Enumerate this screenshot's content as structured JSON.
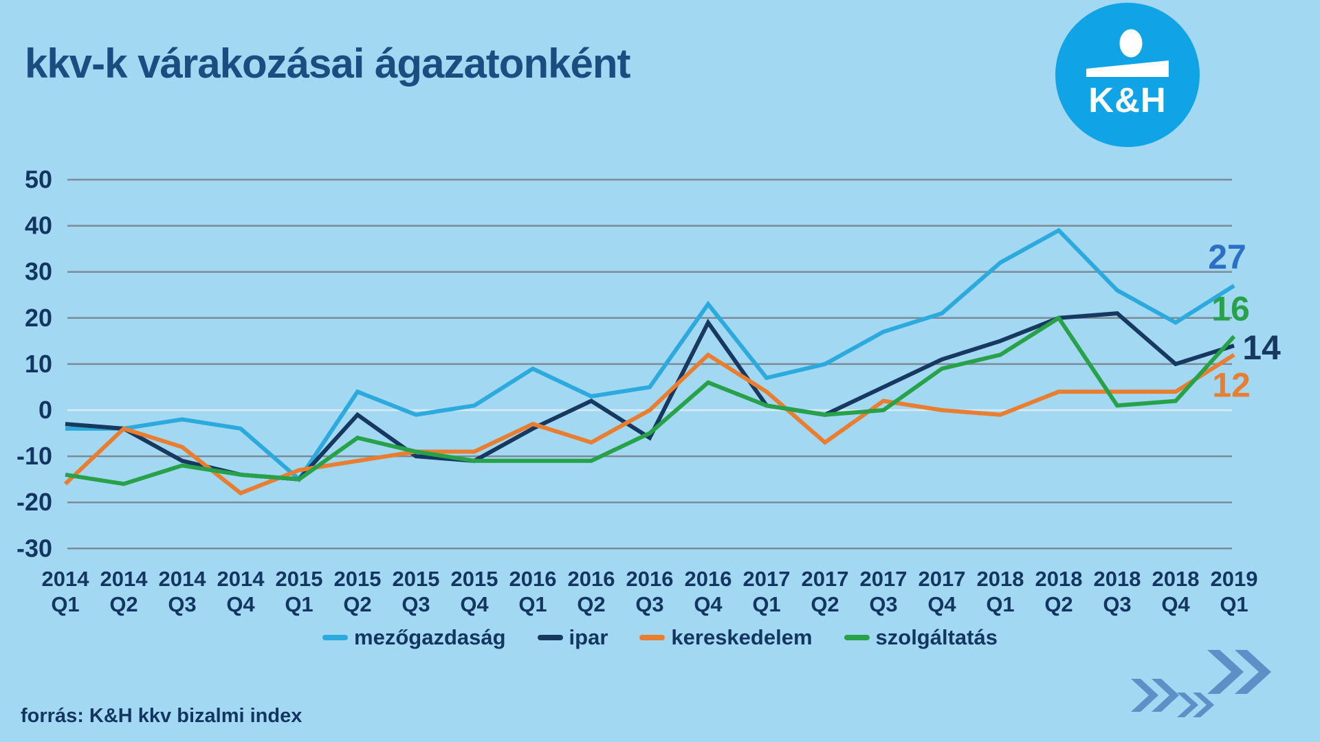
{
  "theme": {
    "bg": "#a3d8f3",
    "title": "#1b4e80",
    "text": "#12365f",
    "grid": "#7c8a96",
    "zero": "#d9eaf5",
    "brand": "#10a4e6",
    "chevron": "#5d90c6"
  },
  "header": {
    "title": "kkv-k várakozásai ágazatonként"
  },
  "logo": {
    "text": "K&H",
    "circle_color": "#10a4e6",
    "figure": "person-icon"
  },
  "footer": {
    "source": "forrás: K&H kkv bizalmi index"
  },
  "chart_data": {
    "type": "line",
    "title": "kkv-k várakozásai ágazatonként",
    "xlabel": "",
    "ylabel": "",
    "ylim": [
      -30,
      50
    ],
    "ytick_step": 10,
    "grid": true,
    "legend_position": "bottom",
    "categories": [
      "2014 Q1",
      "2014 Q2",
      "2014 Q3",
      "2014 Q4",
      "2015 Q1",
      "2015 Q2",
      "2015 Q3",
      "2015 Q4",
      "2016 Q1",
      "2016 Q2",
      "2016 Q3",
      "2016 Q4",
      "2017 Q1",
      "2017 Q2",
      "2017 Q3",
      "2017 Q4",
      "2018 Q1",
      "2018 Q2",
      "2018 Q3",
      "2018 Q4",
      "2019 Q1"
    ],
    "series": [
      {
        "name": "mezőgazdaság",
        "color": "#2caade",
        "values": [
          -4,
          -4,
          -2,
          -4,
          -15,
          4,
          -1,
          1,
          9,
          3,
          5,
          23,
          7,
          10,
          17,
          21,
          32,
          39,
          26,
          19,
          27
        ],
        "end_label": "27",
        "end_label_color": "#2b70c4",
        "end_label_offset": [
          -10,
          -42
        ]
      },
      {
        "name": "ipar",
        "color": "#17395f",
        "values": [
          -3,
          -4,
          -11,
          -14,
          -15,
          -1,
          -10,
          -11,
          -4,
          2,
          -6,
          19,
          1,
          -1,
          5,
          11,
          15,
          20,
          21,
          10,
          14
        ],
        "end_label": "14",
        "end_label_color": "#17395f",
        "end_label_offset": [
          40,
          3
        ]
      },
      {
        "name": "kereskedelem",
        "color": "#e97e31",
        "values": [
          -16,
          -4,
          -8,
          -18,
          -13,
          -11,
          -9,
          -9,
          -3,
          -7,
          0,
          12,
          4,
          -7,
          2,
          0,
          -1,
          4,
          4,
          4,
          12
        ],
        "end_label": "12",
        "end_label_color": "#e97e31",
        "end_label_offset": [
          -4,
          44
        ]
      },
      {
        "name": "szolgáltatás",
        "color": "#28a24a",
        "values": [
          -14,
          -16,
          -12,
          -14,
          -15,
          -6,
          -9,
          -11,
          -11,
          -11,
          -5,
          6,
          1,
          -1,
          0,
          9,
          12,
          20,
          1,
          2,
          16
        ],
        "end_label": "16",
        "end_label_color": "#28a24a",
        "end_label_offset": [
          -5,
          -40
        ]
      }
    ]
  }
}
